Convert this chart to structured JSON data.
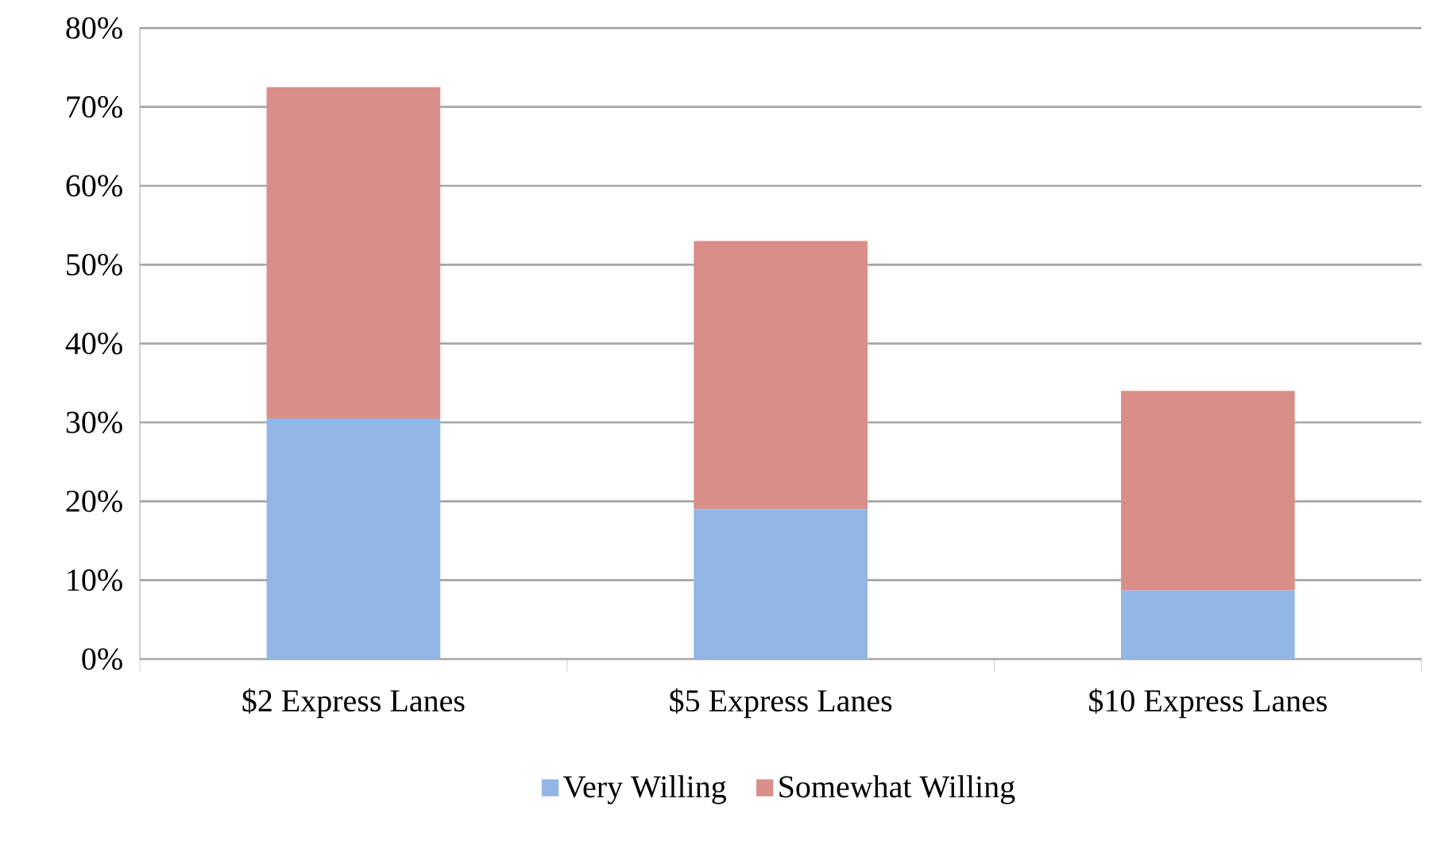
{
  "chart_data": {
    "type": "bar",
    "stacked": true,
    "categories": [
      "$2 Express Lanes",
      "$5 Express Lanes",
      "$10 Express Lanes"
    ],
    "series": [
      {
        "name": "Very Willing",
        "color": "#92b6e6",
        "values": [
          30.5,
          19,
          8.7
        ]
      },
      {
        "name": "Somewhat Willing",
        "color": "#d98e89",
        "values": [
          42,
          34,
          25.3
        ]
      }
    ],
    "ylim": [
      0,
      80
    ],
    "yticks": [
      {
        "value": 0,
        "label": "0%"
      },
      {
        "value": 10,
        "label": "10%"
      },
      {
        "value": 20,
        "label": "20%"
      },
      {
        "value": 30,
        "label": "30%"
      },
      {
        "value": 40,
        "label": "40%"
      },
      {
        "value": 50,
        "label": "50%"
      },
      {
        "value": 60,
        "label": "60%"
      },
      {
        "value": 70,
        "label": "70%"
      },
      {
        "value": 80,
        "label": "80%"
      }
    ],
    "grid": "y",
    "legend": "bottom"
  }
}
